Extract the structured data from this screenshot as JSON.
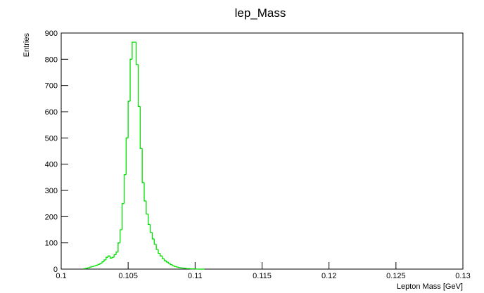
{
  "chart_data": {
    "type": "histogram",
    "title": "lep_Mass",
    "x_label": "Lepton Mass [GeV]",
    "y_label": "Entries",
    "bins": [
      0.1017,
      0.10185,
      0.102,
      0.10215,
      0.1023,
      0.10245,
      0.1026,
      0.10275,
      0.1029,
      0.10305,
      0.1032,
      0.10335,
      0.1035,
      0.10365,
      0.1038,
      0.10395,
      0.1041,
      0.10425,
      0.1044,
      0.10455,
      0.1047,
      0.10485,
      0.105,
      0.10515,
      0.1053,
      0.10545,
      0.1056,
      0.10575,
      0.1059,
      0.10605,
      0.1062,
      0.10635,
      0.1065,
      0.10665,
      0.1068,
      0.10695,
      0.1071,
      0.10725,
      0.1074,
      0.10755,
      0.1077,
      0.10785,
      0.108,
      0.10815,
      0.1083,
      0.10845,
      0.1086,
      0.10875,
      0.1089,
      0.10905,
      0.1092,
      0.10935,
      0.1095,
      0.10965,
      0.1098,
      0.10995,
      0.1101,
      0.11025,
      0.1104,
      0.11055,
      0.1107
    ],
    "values": [
      2,
      3,
      5,
      8,
      10,
      12,
      15,
      18,
      22,
      28,
      35,
      45,
      50,
      42,
      45,
      55,
      65,
      100,
      150,
      250,
      360,
      500,
      640,
      800,
      865,
      865,
      780,
      620,
      460,
      330,
      260,
      210,
      170,
      140,
      115,
      95,
      75,
      60,
      50,
      40,
      32,
      27,
      22,
      17,
      13,
      10,
      8,
      6,
      5,
      4,
      3,
      2,
      2,
      1,
      1,
      1,
      0,
      0,
      0,
      0
    ],
    "color": "#00e000",
    "xlim": [
      0.1,
      0.13
    ],
    "xticks": [
      0.1,
      0.105,
      0.11,
      0.115,
      0.12,
      0.125,
      0.13
    ],
    "ylim": [
      0,
      900
    ],
    "yticks": [
      0,
      100,
      200,
      300,
      400,
      500,
      600,
      700,
      800,
      900
    ]
  }
}
